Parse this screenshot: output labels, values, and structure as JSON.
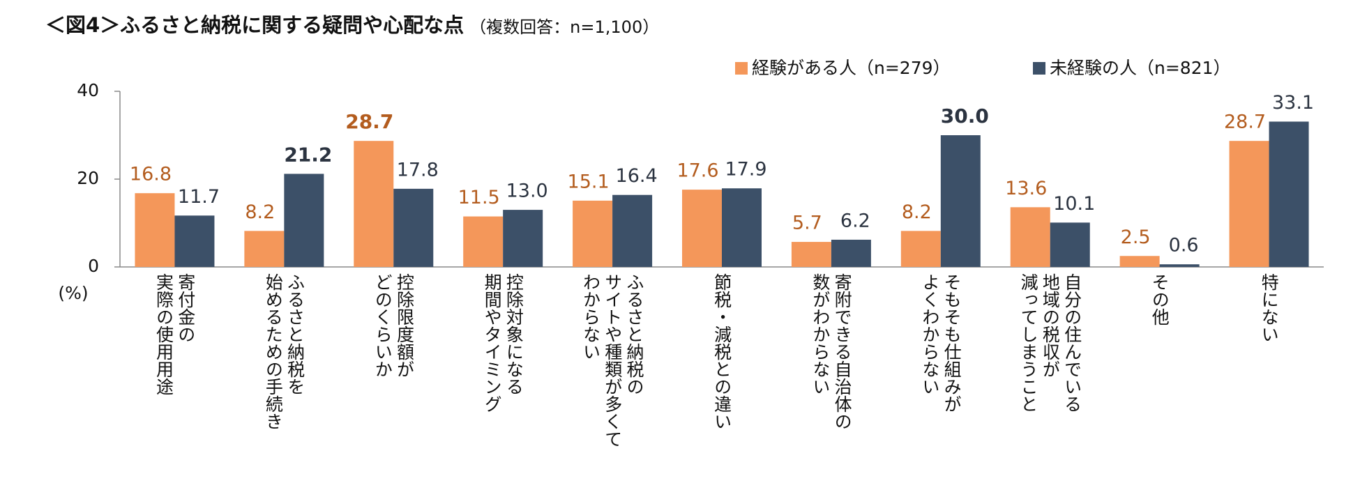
{
  "chart_data": {
    "type": "bar",
    "title": "＜図4＞ふるさと納税に関する疑問や心配な点",
    "subtitle": "（複数回答：n=1,100）",
    "y_label": "(%)",
    "categories": [
      "寄付金の\n実際の使用用途",
      "ふるさと納税を\n始めるための手続き",
      "控除限度額が\nどのくらいか",
      "控除対象になる\n期間やタイミング",
      "ふるさと納税の\nサイトや種類が多くて\nわからない",
      "節税・減税との違い",
      "寄附できる自治体の\n数がわからない",
      "そもそも仕組みが\nよくわからない",
      "自分の住んでいる\n地域の税収が\n減ってしまうこと",
      "その他",
      "特にない"
    ],
    "series": [
      {
        "name": "経験がある人（n=279）",
        "color": "#f4975a",
        "label_color": "#b35c1e",
        "values": [
          16.8,
          8.2,
          28.7,
          11.5,
          15.1,
          17.6,
          5.7,
          8.2,
          13.6,
          2.5,
          28.7
        ],
        "value_labels": [
          "16.8",
          "8.2",
          "28.7",
          "11.5",
          "15.1",
          "17.6",
          "5.7",
          "8.2",
          "13.6",
          "2.5",
          "28.7"
        ]
      },
      {
        "name": "未経験の人（n=821）",
        "color": "#3c5068",
        "label_color": "#2b3340",
        "values": [
          11.7,
          21.2,
          17.8,
          13.0,
          16.4,
          17.9,
          6.2,
          30.0,
          10.1,
          0.6,
          33.1
        ],
        "value_labels": [
          "11.7",
          "21.2",
          "17.8",
          "13.0",
          "16.4",
          "17.9",
          "6.2",
          "30.0",
          "10.1",
          "0.6",
          "33.1"
        ]
      }
    ],
    "ylim": [
      0,
      40
    ],
    "yticks": [
      0,
      20,
      40
    ],
    "grid": false
  }
}
